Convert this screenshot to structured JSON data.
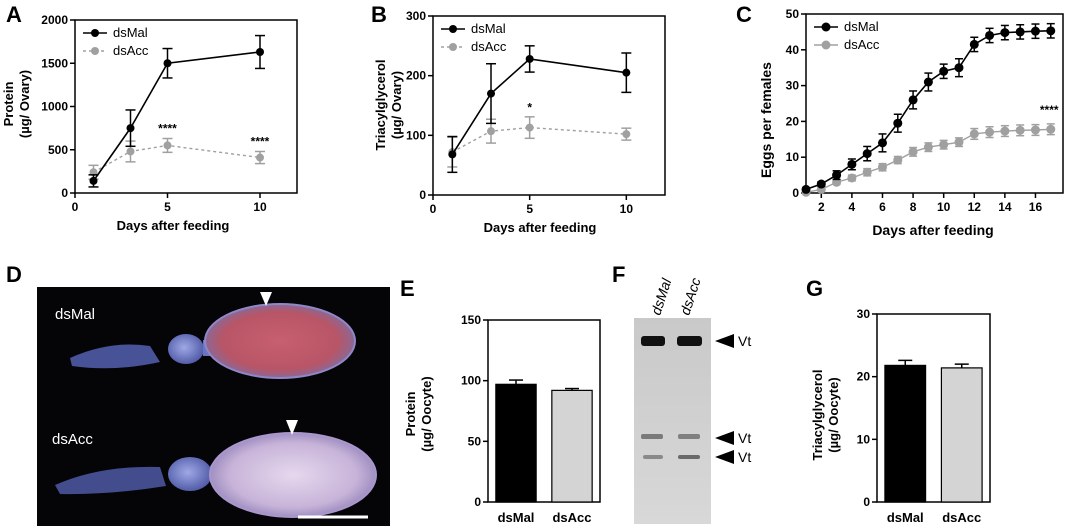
{
  "panel_labels": [
    "A",
    "B",
    "C",
    "D",
    "E",
    "F",
    "G"
  ],
  "colors": {
    "dsMal": "#000000",
    "dsAcc": "#a0a0a0",
    "dsAcc_bar": "#d4d4d4"
  },
  "chart_data": [
    {
      "panel": "A",
      "type": "line",
      "xlabel": "Days after feeding",
      "ylabel": "Protein",
      "ylabel_unit": "(µg/ Ovary)",
      "xlim": [
        0,
        12
      ],
      "ylim": [
        0,
        2000
      ],
      "xticks": [
        0,
        5,
        10
      ],
      "yticks": [
        0,
        500,
        1000,
        1500,
        2000
      ],
      "legend": "top-left",
      "series": [
        {
          "name": "dsMal",
          "style": "solid",
          "x": [
            1,
            3,
            5,
            10
          ],
          "y": [
            140,
            750,
            1500,
            1630
          ],
          "err": [
            70,
            210,
            170,
            190
          ]
        },
        {
          "name": "dsAcc",
          "style": "dotted",
          "x": [
            1,
            3,
            5,
            10
          ],
          "y": [
            240,
            480,
            550,
            410
          ],
          "err": [
            80,
            120,
            80,
            70
          ]
        }
      ],
      "annotations": [
        {
          "x": 5,
          "y": 700,
          "text": "****"
        },
        {
          "x": 10,
          "y": 550,
          "text": "****"
        }
      ]
    },
    {
      "panel": "B",
      "type": "line",
      "xlabel": "Days after feeding",
      "ylabel": "Triacylglycerol",
      "ylabel_unit": "(µg/ Ovary)",
      "xlim": [
        0,
        12
      ],
      "ylim": [
        0,
        300
      ],
      "xticks": [
        0,
        5,
        10
      ],
      "yticks": [
        0,
        100,
        200,
        300
      ],
      "legend": "top-left",
      "series": [
        {
          "name": "dsMal",
          "style": "solid",
          "x": [
            1,
            3,
            5,
            10
          ],
          "y": [
            68,
            170,
            228,
            205
          ],
          "err": [
            30,
            50,
            22,
            33
          ]
        },
        {
          "name": "dsAcc",
          "style": "dotted",
          "x": [
            1,
            3,
            5,
            10
          ],
          "y": [
            72,
            107,
            113,
            102
          ],
          "err": [
            25,
            20,
            18,
            10
          ]
        }
      ],
      "annotations": [
        {
          "x": 5,
          "y": 140,
          "text": "*"
        }
      ]
    },
    {
      "panel": "C",
      "type": "line",
      "xlabel": "Days after feeding",
      "ylabel": "Eggs per females",
      "xlim": [
        1,
        17.8
      ],
      "ylim": [
        0,
        50
      ],
      "xticks": [
        2,
        4,
        6,
        8,
        10,
        12,
        14,
        16
      ],
      "yticks": [
        0,
        10,
        20,
        30,
        40,
        50
      ],
      "legend": "top-left",
      "series": [
        {
          "name": "dsMal",
          "style": "solid",
          "x": [
            1,
            2,
            3,
            4,
            5,
            6,
            7,
            8,
            9,
            10,
            11,
            12,
            13,
            14,
            15,
            16,
            17
          ],
          "y": [
            1,
            2.5,
            5,
            8,
            11,
            14,
            19.5,
            26,
            31,
            34,
            35,
            41.5,
            44,
            44.8,
            45,
            45.2,
            45.3
          ],
          "err": [
            0.4,
            0.6,
            1.2,
            1.5,
            2,
            2.5,
            2.5,
            2.5,
            2.5,
            2,
            2.5,
            2,
            2,
            2,
            2,
            2,
            2
          ]
        },
        {
          "name": "dsAcc",
          "style": "solid",
          "x": [
            1,
            2,
            3,
            4,
            5,
            6,
            7,
            8,
            9,
            10,
            11,
            12,
            13,
            14,
            15,
            16,
            17
          ],
          "y": [
            0.2,
            1,
            3,
            4.2,
            5.8,
            7.2,
            9.2,
            11.5,
            12.8,
            13.5,
            14.2,
            16.5,
            17,
            17.3,
            17.5,
            17.6,
            17.8
          ],
          "err": [
            0.2,
            0.4,
            0.6,
            0.8,
            1,
            1,
            1,
            1.2,
            1.2,
            1.2,
            1.2,
            1.5,
            1.5,
            1.5,
            1.5,
            1.5,
            1.5
          ]
        }
      ],
      "annotations": [
        {
          "x": 16.9,
          "y": 22,
          "text": "****"
        }
      ]
    },
    {
      "panel": "E",
      "type": "bar",
      "ylabel": "Protein",
      "ylabel_unit": "(µg/ Oocyte)",
      "ylim": [
        0,
        150
      ],
      "yticks": [
        0,
        50,
        100,
        150
      ],
      "categories": [
        "dsMal",
        "dsAcc"
      ],
      "values": [
        97,
        92
      ],
      "err": [
        3.5,
        1.5
      ]
    },
    {
      "panel": "G",
      "type": "bar",
      "ylabel": "Triacylglycerol",
      "ylabel_unit": "(µg/ Oocyte)",
      "ylim": [
        0,
        30
      ],
      "yticks": [
        0,
        10,
        20,
        30
      ],
      "categories": [
        "dsMal",
        "dsAcc"
      ],
      "values": [
        21.8,
        21.4
      ],
      "err": [
        0.8,
        0.6
      ]
    }
  ],
  "photo": {
    "top_label": "dsMal",
    "bottom_label": "dsAcc"
  },
  "blot": {
    "lanes": [
      "dsMal",
      "dsAcc"
    ],
    "bands": [
      "Vt",
      "Vt",
      "Vt"
    ]
  }
}
